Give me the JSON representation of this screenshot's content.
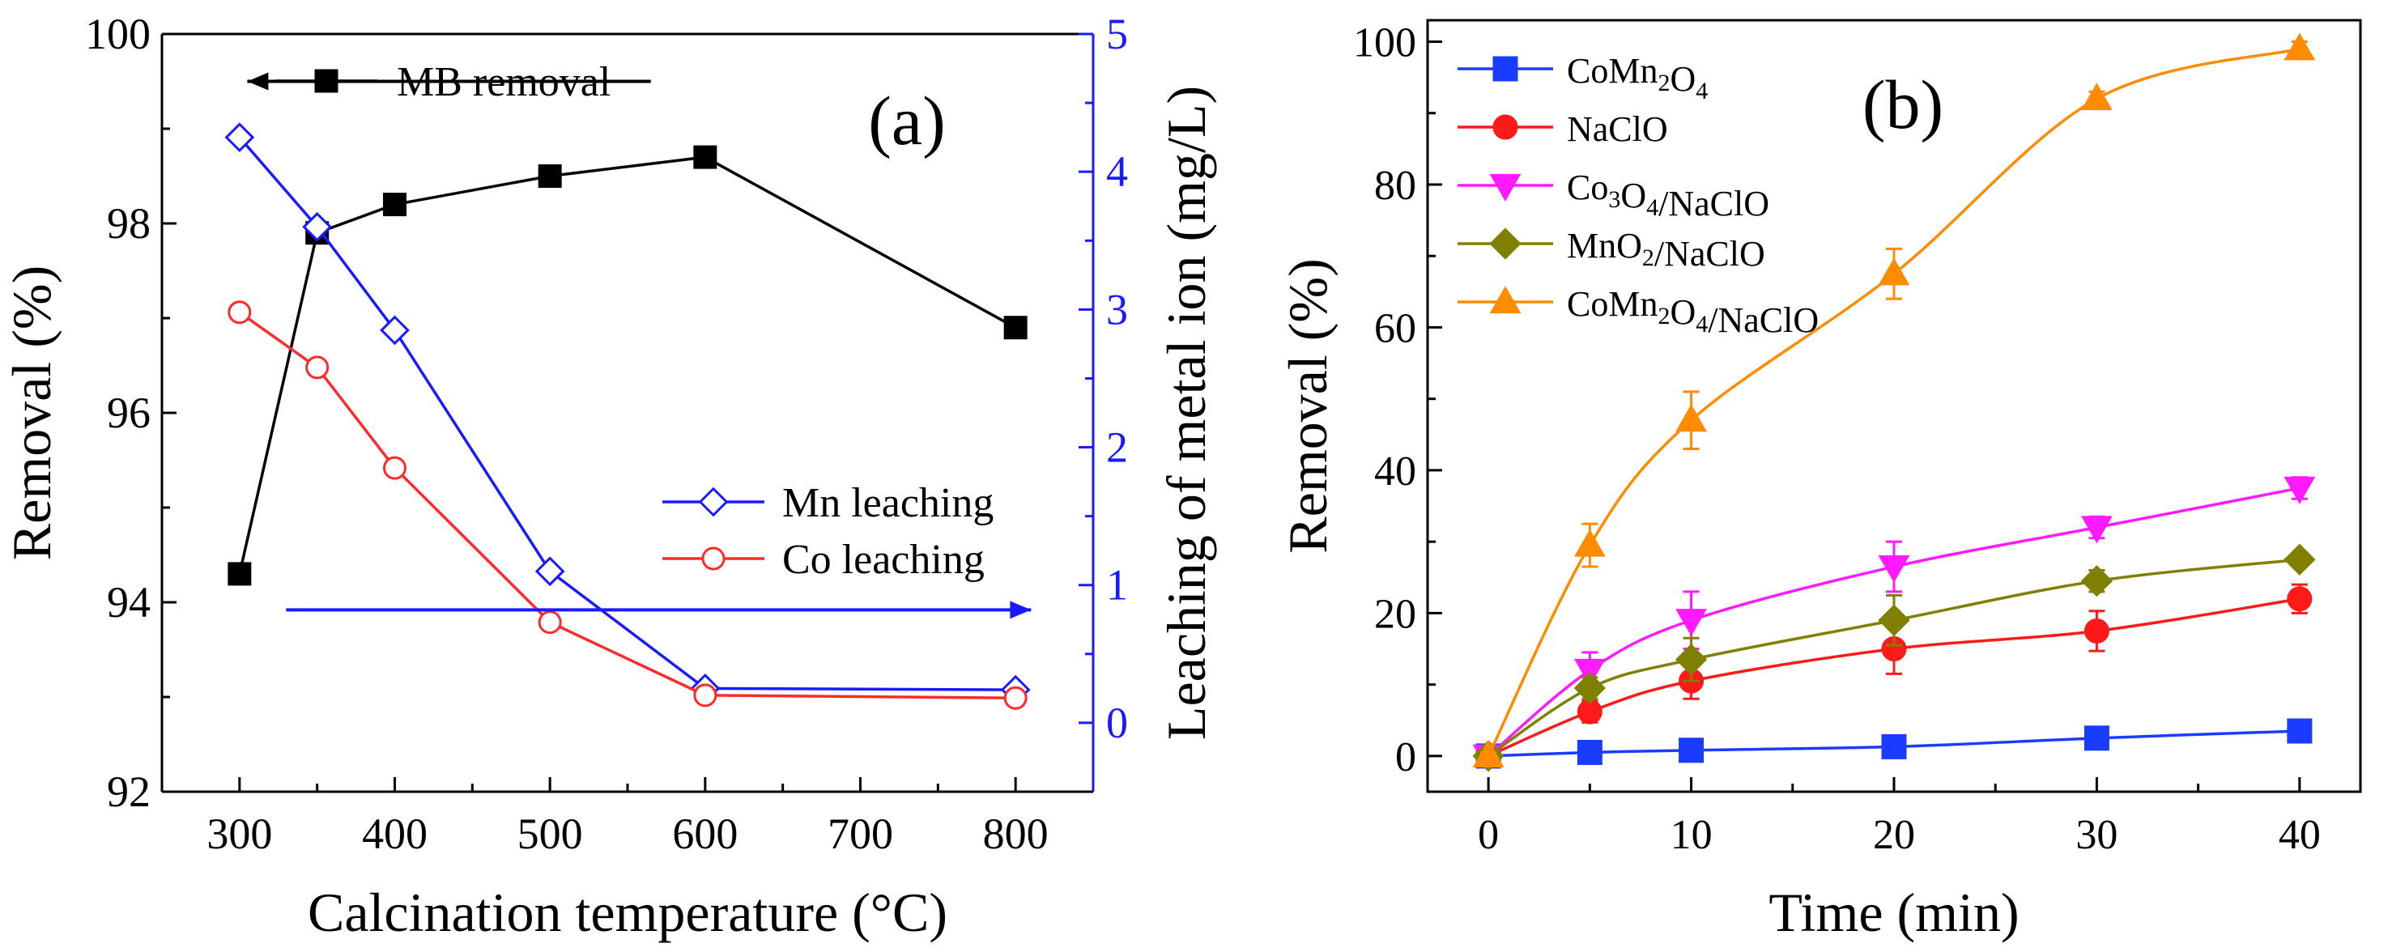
{
  "figure": {
    "panels": [
      "(a)",
      "(b)"
    ]
  },
  "chart_data": [
    {
      "panel": "(a)",
      "type": "line",
      "xlabel": "Calcination temperature (°C)",
      "ylabel": "Removal (%)",
      "y2label": "Leaching of metal ion (mg/L)",
      "xlim": [
        250,
        850
      ],
      "ylim": [
        92,
        100
      ],
      "y2lim": [
        -0.5,
        5
      ],
      "xticks": [
        300,
        400,
        500,
        600,
        700,
        800
      ],
      "yticks": [
        92,
        94,
        96,
        98,
        100
      ],
      "y2ticks": [
        0,
        1,
        2,
        3,
        4,
        5
      ],
      "x_tick_labels": [
        "300",
        "400",
        "500",
        "600",
        "700",
        "800"
      ],
      "y_tick_labels": [
        "92",
        "94",
        "96",
        "98",
        "100"
      ],
      "y2_tick_labels": [
        "0",
        "1",
        "2",
        "3",
        "4",
        "5"
      ],
      "annotations": [
        "(a)"
      ],
      "series": [
        {
          "name": "MB removal",
          "axis": "left",
          "marker": "square",
          "filled": true,
          "color": "#000000",
          "x": [
            300,
            350,
            400,
            500,
            600,
            800
          ],
          "values": [
            94.3,
            97.9,
            98.2,
            98.5,
            98.7,
            96.9
          ]
        },
        {
          "name": "Mn leaching",
          "axis": "right",
          "marker": "diamond",
          "filled": false,
          "color": "#1a1aff",
          "x": [
            300,
            350,
            400,
            500,
            600,
            800
          ],
          "values": [
            4.25,
            3.6,
            2.85,
            1.1,
            0.25,
            0.24
          ]
        },
        {
          "name": "Co leaching",
          "axis": "right",
          "marker": "circle",
          "filled": false,
          "color": "#ff2a2a",
          "x": [
            300,
            350,
            400,
            500,
            600,
            800
          ],
          "values": [
            2.98,
            2.58,
            1.85,
            0.73,
            0.2,
            0.18
          ]
        }
      ],
      "arrows": [
        {
          "series": "MB removal",
          "direction": "left",
          "from_x": 565,
          "to_x": 305,
          "y": 99.5,
          "axis": "left",
          "color": "#000000"
        },
        {
          "series": "Mn leaching",
          "direction": "right",
          "from_x": 330,
          "to_x": 810,
          "y": 0.82,
          "axis": "right",
          "color": "#1a1aff"
        }
      ]
    },
    {
      "panel": "(b)",
      "type": "line",
      "xlabel": "Time (min)",
      "ylabel": "Removal (%)",
      "xlim": [
        -3,
        43
      ],
      "ylim": [
        -5,
        103
      ],
      "xticks": [
        0,
        10,
        20,
        30,
        40
      ],
      "yticks": [
        0,
        20,
        40,
        60,
        80,
        100
      ],
      "x_tick_labels": [
        "0",
        "10",
        "20",
        "30",
        "40"
      ],
      "y_tick_labels": [
        "0",
        "20",
        "40",
        "60",
        "80",
        "100"
      ],
      "annotations": [
        "(b)"
      ],
      "x": [
        0,
        5,
        10,
        20,
        30,
        40
      ],
      "series": [
        {
          "name": "CoMn2O4",
          "label_parts": [
            [
              "CoMn",
              false
            ],
            [
              "2",
              true
            ],
            [
              "O",
              false
            ],
            [
              "4",
              true
            ]
          ],
          "marker": "square",
          "color": "#1a3cff",
          "values": [
            0,
            0.5,
            0.8,
            1.3,
            2.5,
            3.5
          ],
          "errors": [
            0.3,
            0.5,
            0.6,
            0.8,
            0.9,
            1.2
          ]
        },
        {
          "name": "NaClO",
          "label_parts": [
            [
              "NaClO",
              false
            ]
          ],
          "marker": "circle",
          "color": "#ff1a1a",
          "values": [
            0,
            6.2,
            10.5,
            15,
            17.5,
            22
          ],
          "errors": [
            0.5,
            1.5,
            2.5,
            3.5,
            2.8,
            2.0
          ]
        },
        {
          "name": "Co3O4/NaClO",
          "label_parts": [
            [
              "Co",
              false
            ],
            [
              "3",
              true
            ],
            [
              "O",
              false
            ],
            [
              "4",
              true
            ],
            [
              "/NaClO",
              false
            ]
          ],
          "marker": "triangle-down",
          "color": "#ff1aff",
          "values": [
            0,
            12,
            19,
            26.5,
            32,
            37.5
          ],
          "errors": [
            0.5,
            2.5,
            4.0,
            3.5,
            1.5,
            1.5
          ]
        },
        {
          "name": "MnO2/NaClO",
          "label_parts": [
            [
              "MnO",
              false
            ],
            [
              "2",
              true
            ],
            [
              "/NaClO",
              false
            ]
          ],
          "marker": "diamond",
          "color": "#808000",
          "values": [
            0,
            9.5,
            13.5,
            19,
            24.5,
            27.5
          ],
          "errors": [
            0.5,
            1.5,
            3.0,
            3.5,
            1.5,
            1.0
          ]
        },
        {
          "name": "CoMn2O4/NaClO",
          "label_parts": [
            [
              "CoMn",
              false
            ],
            [
              "2",
              true
            ],
            [
              "O",
              false
            ],
            [
              "4",
              true
            ],
            [
              "/NaClO",
              false
            ]
          ],
          "marker": "triangle-up",
          "color": "#ff8c00",
          "values": [
            0,
            29.5,
            47,
            67.5,
            92,
            99
          ],
          "errors": [
            0.5,
            3.0,
            4.0,
            3.5,
            1.0,
            1.0
          ]
        }
      ]
    }
  ]
}
